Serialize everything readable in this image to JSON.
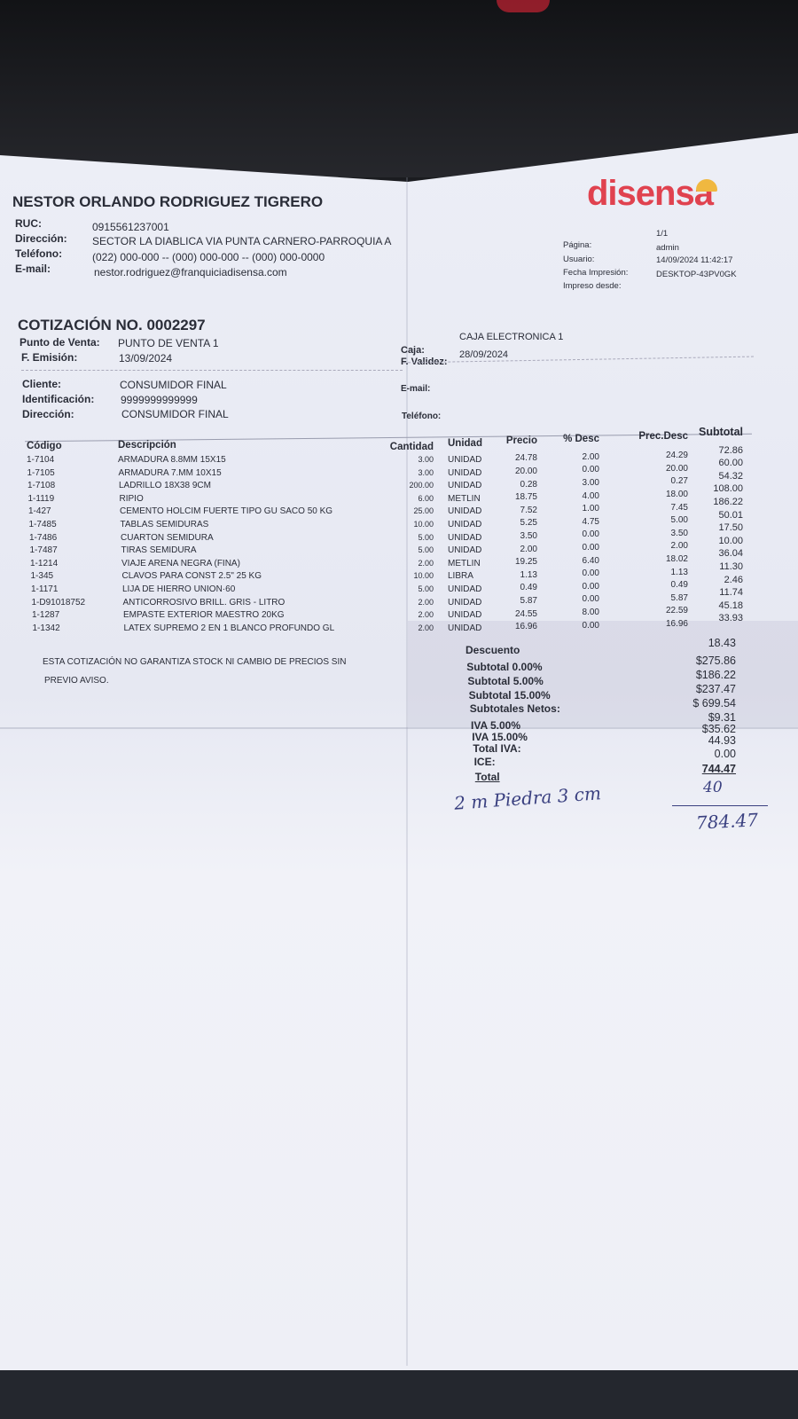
{
  "issuer": {
    "name": "NESTOR ORLANDO RODRIGUEZ TIGRERO",
    "ruc_label": "RUC:",
    "ruc": "0915561237001",
    "address_label": "Dirección:",
    "address": "SECTOR LA DIABLICA VIA PUNTA CARNERO-PARROQUIA A",
    "phone_label": "Teléfono:",
    "phone": "(022) 000-000 -- (000) 000-000 -- (000) 000-0000",
    "email_label": "E-mail:",
    "email": "nestor.rodriguez@franquiciadisensa.com"
  },
  "logo": {
    "text": "disensa",
    "color": "#e0424f",
    "accent": "#f0b840"
  },
  "print_info": {
    "page_label": "Página:",
    "page": "1/1",
    "user_label": "Usuario:",
    "user": "admin",
    "date_label": "Fecha Impresión:",
    "date": "14/09/2024 11:42:17",
    "from_label": "Impreso desde:",
    "from": "DESKTOP-43PV0GK"
  },
  "quote": {
    "title": "COTIZACIÓN NO.",
    "number": "0002297",
    "pos_label": "Punto de Venta:",
    "pos": "PUNTO DE VENTA 1",
    "issue_label": "F. Emisión:",
    "issue": "13/09/2024",
    "till_label": "Caja:",
    "till": "CAJA ELECTRONICA 1",
    "valid_label": "F. Validez:",
    "valid": "28/09/2024"
  },
  "client": {
    "client_label": "Cliente:",
    "client": "CONSUMIDOR FINAL",
    "id_label": "Identificación:",
    "id": "9999999999999",
    "address_label": "Dirección:",
    "address": "CONSUMIDOR FINAL",
    "email_label": "E-mail:",
    "phone_label": "Teléfono:"
  },
  "table": {
    "headers": [
      "Código",
      "Descripción",
      "Cantidad",
      "Unidad",
      "Precio",
      "% Desc",
      "Prec.Desc",
      "Subtotal"
    ],
    "rows": [
      [
        "1-7104",
        "ARMADURA 8.8MM 15X15",
        "3.00",
        "UNIDAD",
        "24.78",
        "2.00",
        "24.29",
        "72.86"
      ],
      [
        "1-7105",
        "ARMADURA 7.MM  10X15",
        "3.00",
        "UNIDAD",
        "20.00",
        "0.00",
        "20.00",
        "60.00"
      ],
      [
        "1-7108",
        "LADRILLO 18X38  9CM",
        "200.00",
        "UNIDAD",
        "0.28",
        "3.00",
        "0.27",
        "54.32"
      ],
      [
        "1-1119",
        "RIPIO",
        "6.00",
        "METLIN",
        "18.75",
        "4.00",
        "18.00",
        "108.00"
      ],
      [
        "1-427",
        "CEMENTO HOLCIM FUERTE TIPO GU SACO 50 KG",
        "25.00",
        "UNIDAD",
        "7.52",
        "1.00",
        "7.45",
        "186.22"
      ],
      [
        "1-7485",
        "TABLAS SEMIDURAS",
        "10.00",
        "UNIDAD",
        "5.25",
        "4.75",
        "5.00",
        "50.01"
      ],
      [
        "1-7486",
        "CUARTON SEMIDURA",
        "5.00",
        "UNIDAD",
        "3.50",
        "0.00",
        "3.50",
        "17.50"
      ],
      [
        "1-7487",
        "TIRAS SEMIDURA",
        "5.00",
        "UNIDAD",
        "2.00",
        "0.00",
        "2.00",
        "10.00"
      ],
      [
        "1-1214",
        "VIAJE ARENA NEGRA (FINA)",
        "2.00",
        "METLIN",
        "19.25",
        "6.40",
        "18.02",
        "36.04"
      ],
      [
        "1-345",
        "CLAVOS PARA CONST 2.5\" 25 KG",
        "10.00",
        "LIBRA",
        "1.13",
        "0.00",
        "1.13",
        "11.30"
      ],
      [
        "1-1171",
        "LIJA DE HIERRO UNION·60",
        "5.00",
        "UNIDAD",
        "0.49",
        "0.00",
        "0.49",
        "2.46"
      ],
      [
        "1-D91018752",
        "ANTICORROSIVO BRILL. GRIS - LITRO",
        "2.00",
        "UNIDAD",
        "5.87",
        "0.00",
        "5.87",
        "11.74"
      ],
      [
        "1-1287",
        "EMPASTE EXTERIOR MAESTRO 20KG",
        "2.00",
        "UNIDAD",
        "24.55",
        "8.00",
        "22.59",
        "45.18"
      ],
      [
        "1-1342",
        "LATEX SUPREMO 2 EN 1 BLANCO PROFUNDO GL",
        "2.00",
        "UNIDAD",
        "16.96",
        "0.00",
        "16.96",
        "33.93"
      ]
    ]
  },
  "note": [
    "ESTA COTIZACIÓN NO GARANTIZA STOCK NI CAMBIO DE PRECIOS SIN",
    "PREVIO AVISO."
  ],
  "totals": {
    "labels": [
      "Descuento",
      "Subtotal 0.00%",
      "Subtotal 5.00%",
      "Subtotal 15.00%",
      "Subtotales Netos:",
      "IVA 5.00%",
      "IVA 15.00%",
      "Total IVA:",
      "ICE:",
      "Total"
    ],
    "values": [
      "18.43",
      "$275.86",
      "$186.22",
      "$237.47",
      "$ 699.54",
      "$9.31",
      "$35.62",
      "44.93",
      "0.00",
      "744.47"
    ]
  },
  "handwritten": {
    "note": "2 m Piedra 3 cm",
    "add": "40",
    "result": "784.47"
  }
}
